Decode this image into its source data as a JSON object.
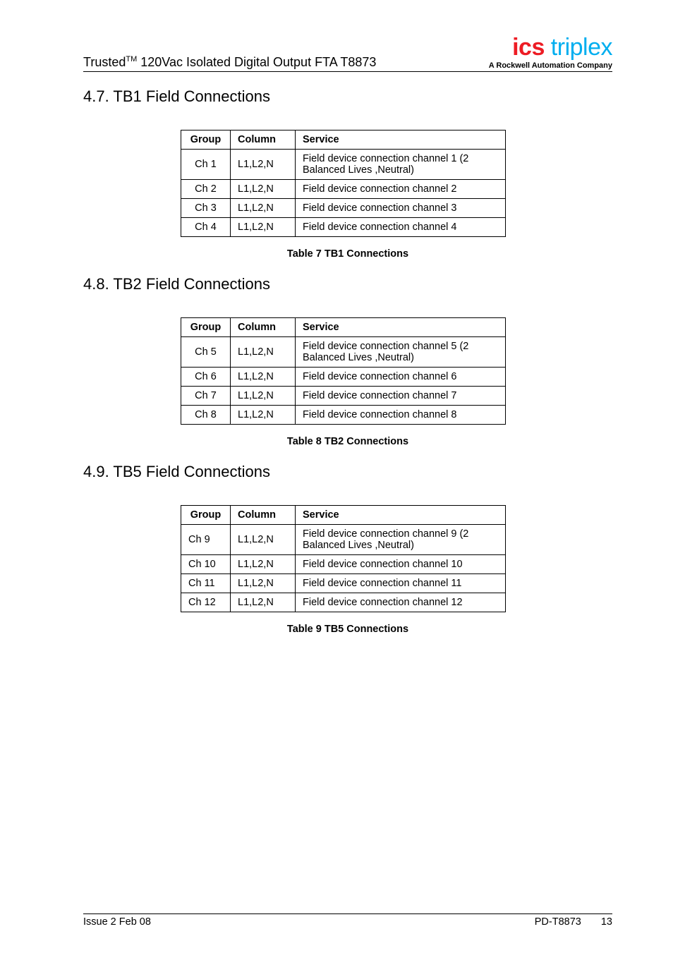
{
  "header": {
    "product_line": "Trusted",
    "tm": "TM",
    "product_desc": " 120Vac Isolated Digital Output FTA T8873",
    "logo_ics": "ics",
    "logo_triplex": " triplex",
    "logo_sub_prefix": "A ",
    "logo_sub_bold": "Rockwell Automation",
    "logo_sub_suffix": " Company"
  },
  "sections": [
    {
      "number": "4.7.",
      "title": " TB1 Field Connections",
      "caption": "Table 7 TB1 Connections",
      "headers": {
        "group": "Group",
        "column": "Column",
        "service": "Service"
      },
      "rows": [
        {
          "group": "Ch 1",
          "column": "L1,L2,N",
          "service": "Field device connection channel 1 (2 Balanced Lives ,Neutral)"
        },
        {
          "group": "Ch 2",
          "column": "L1,L2,N",
          "service": "Field device connection channel 2"
        },
        {
          "group": "Ch 3",
          "column": "L1,L2,N",
          "service": "Field device connection channel 3"
        },
        {
          "group": "Ch 4",
          "column": "L1,L2,N",
          "service": "Field device connection channel 4"
        }
      ]
    },
    {
      "number": "4.8.",
      "title": " TB2 Field Connections",
      "caption": "Table 8 TB2 Connections",
      "headers": {
        "group": "Group",
        "column": "Column",
        "service": "Service"
      },
      "rows": [
        {
          "group": "Ch 5",
          "column": "L1,L2,N",
          "service": "Field device connection channel 5 (2 Balanced Lives ,Neutral)"
        },
        {
          "group": "Ch 6",
          "column": "L1,L2,N",
          "service": "Field device connection channel 6"
        },
        {
          "group": "Ch 7",
          "column": "L1,L2,N",
          "service": "Field device connection channel 7"
        },
        {
          "group": "Ch 8",
          "column": "L1,L2,N",
          "service": "Field device connection channel 8"
        }
      ]
    },
    {
      "number": "4.9.",
      "title": " TB5 Field Connections",
      "caption": "Table 9 TB5 Connections",
      "headers": {
        "group": "Group",
        "column": "Column",
        "service": "Service"
      },
      "rows": [
        {
          "group": "Ch 9",
          "column": "L1,L2,N",
          "service": "Field device connection channel 9 (2 Balanced Lives ,Neutral)"
        },
        {
          "group": "Ch 10",
          "column": "L1,L2,N",
          "service": "Field device connection channel 10"
        },
        {
          "group": "Ch 11",
          "column": "L1,L2,N",
          "service": "Field device connection channel 11"
        },
        {
          "group": "Ch 12",
          "column": "L1,L2,N",
          "service": "Field device connection channel 12"
        }
      ]
    }
  ],
  "layout": {
    "first_row_left_align": false,
    "left_align_sections": [
      2
    ]
  },
  "footer": {
    "left": "Issue 2 Feb 08",
    "doc": "PD-T8873",
    "page": "13"
  }
}
